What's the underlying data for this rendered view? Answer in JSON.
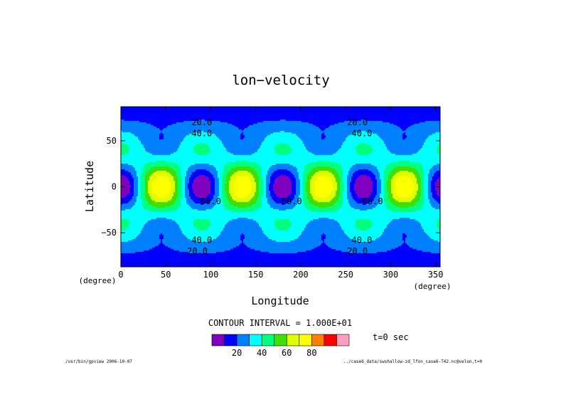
{
  "chart_data": {
    "type": "heatmap",
    "title": "lon−velocity",
    "xlabel": "Longitude",
    "ylabel": "Latitude",
    "xunit": "(degree)",
    "yunit": "(degree)",
    "xlim": [
      0,
      355
    ],
    "ylim": [
      -87,
      87
    ],
    "x_ticks": [
      "0",
      "50",
      "100",
      "150",
      "200",
      "250",
      "300",
      "350"
    ],
    "y_ticks": [
      "50",
      "0",
      "−50"
    ],
    "contour_interval_text": "CONTOUR INTERVAL = 1.000E+01",
    "contour_interval": 10,
    "time_text": "t=0 sec",
    "contour_labels": [
      {
        "text": "20.0",
        "lon": 90,
        "lat": 70
      },
      {
        "text": "40.0",
        "lon": 90,
        "lat": 58
      },
      {
        "text": "20.0",
        "lon": 263,
        "lat": 70
      },
      {
        "text": "40.0",
        "lon": 268,
        "lat": 58
      },
      {
        "text": "60.0",
        "lon": 100,
        "lat": -16
      },
      {
        "text": "60.0",
        "lon": 190,
        "lat": -16
      },
      {
        "text": "60.0",
        "lon": 280,
        "lat": -16
      },
      {
        "text": "40.0",
        "lon": 90,
        "lat": -58
      },
      {
        "text": "20.0",
        "lon": 85,
        "lat": -70
      },
      {
        "text": "40.0",
        "lon": 268,
        "lat": -58
      },
      {
        "text": "20.0",
        "lon": 263,
        "lat": -70
      }
    ],
    "colorbar": {
      "colors": [
        "#7f00bf",
        "#0000ff",
        "#007fff",
        "#00ffff",
        "#00ff7f",
        "#3fdf00",
        "#dfff00",
        "#ffff00",
        "#ff7f00",
        "#ff0000",
        "#ff9fbf"
      ],
      "levels": [
        0,
        10,
        20,
        30,
        40,
        50,
        60,
        70,
        80,
        90,
        100
      ],
      "tick_labels": [
        "20",
        "40",
        "60",
        "80"
      ]
    }
  },
  "footer": {
    "left": "/usr/bin/gpview  2006-10-07",
    "right": "../case6_data/swshallow-zd_lfon_case6-T42.nc@velon,t=0"
  }
}
